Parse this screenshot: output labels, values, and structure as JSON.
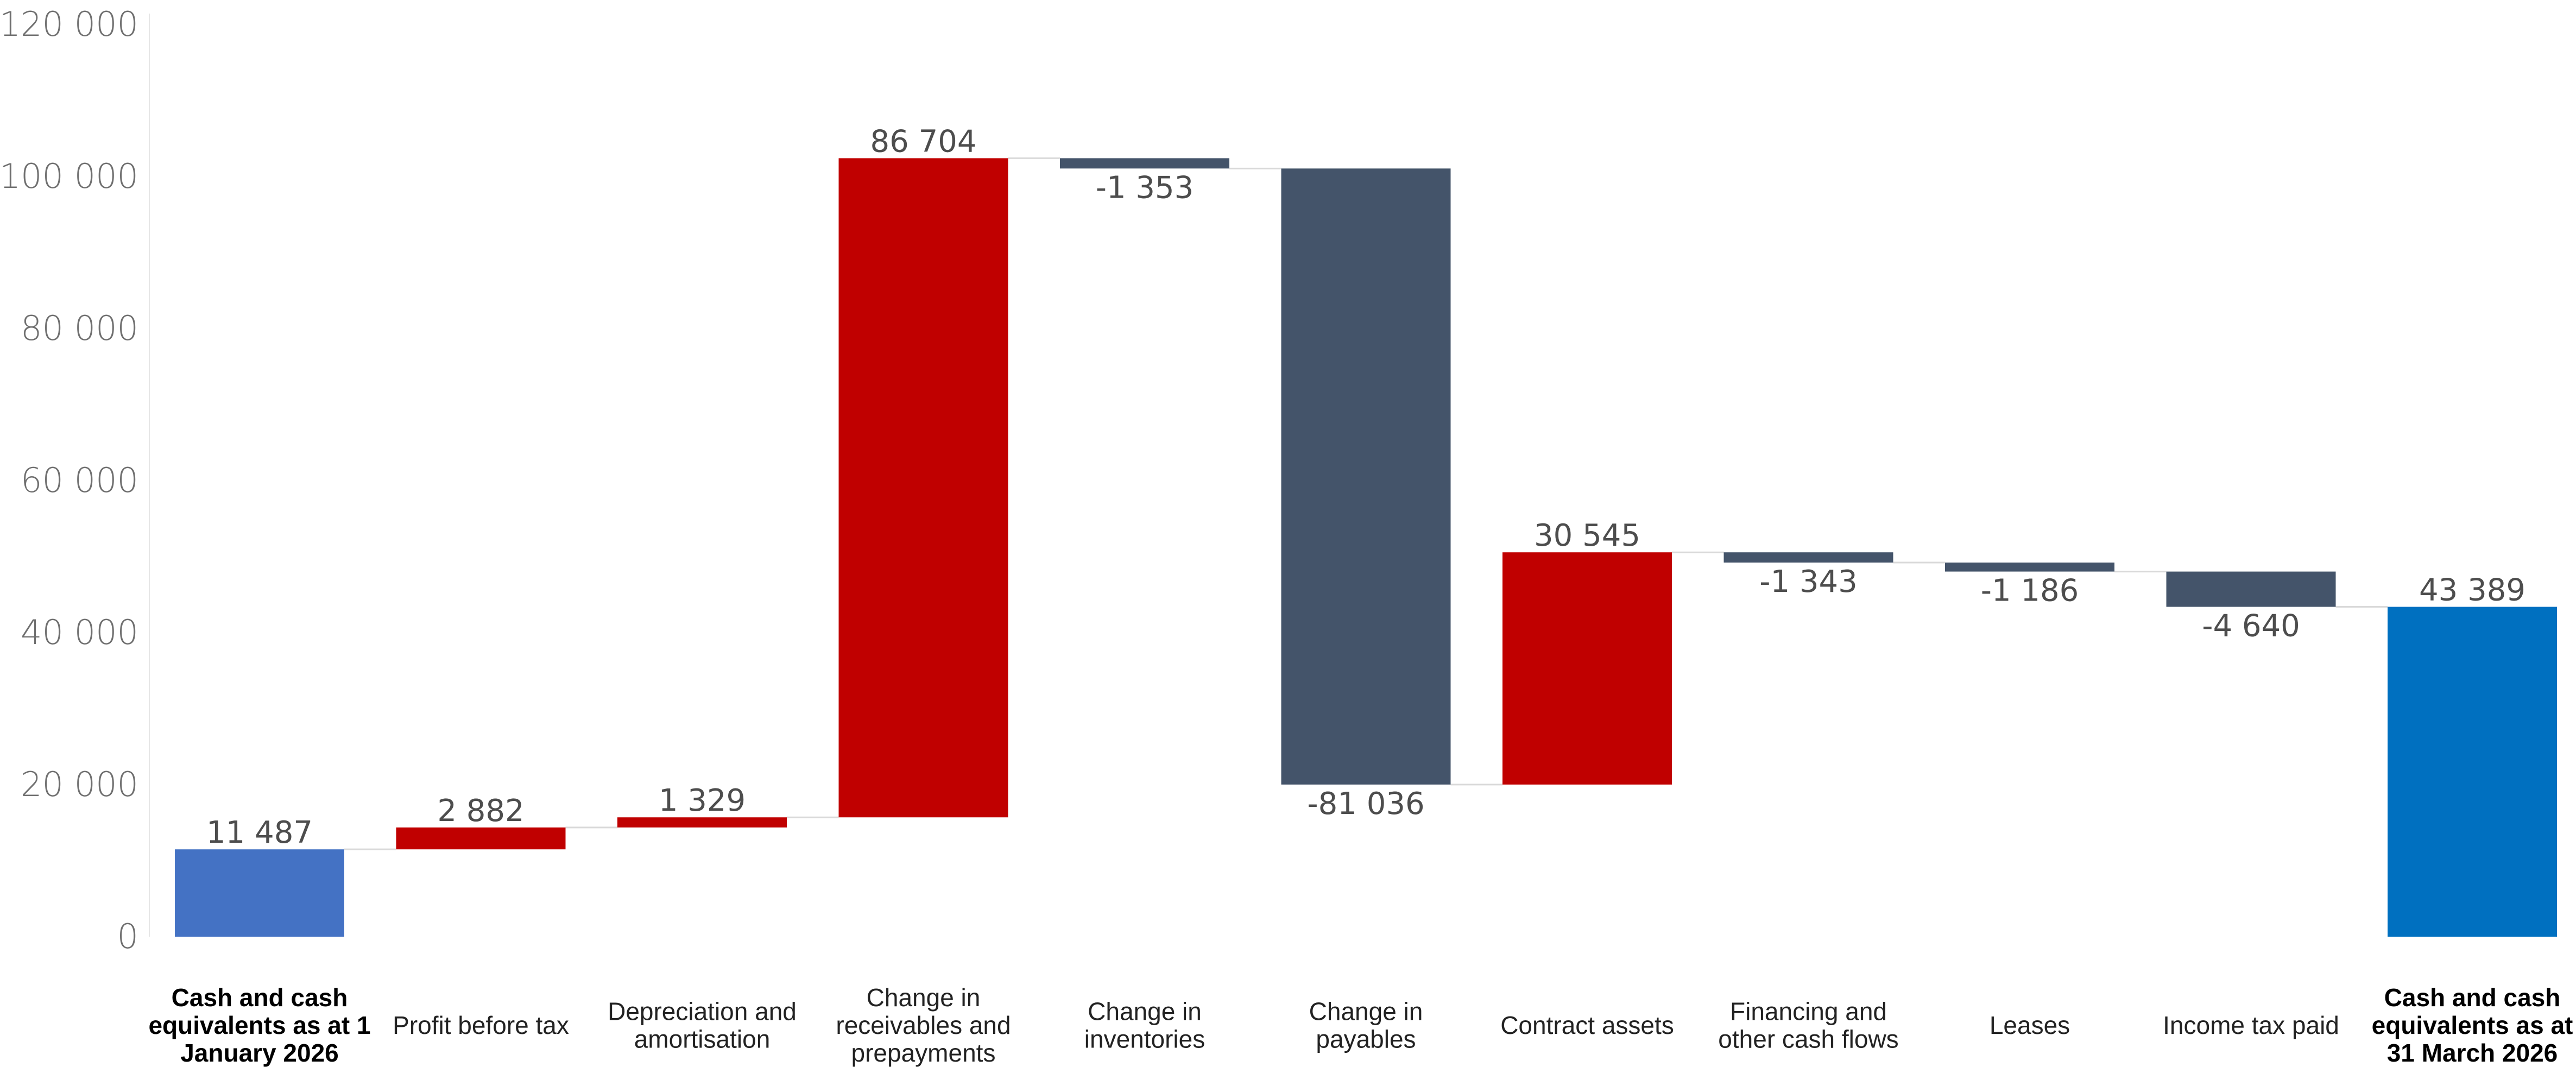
{
  "chart_data": {
    "type": "waterfall",
    "title": "",
    "xlabel": "",
    "ylabel": "",
    "ylim": [
      0,
      120000
    ],
    "y_ticks": [
      0,
      20000,
      40000,
      60000,
      80000,
      100000,
      120000
    ],
    "y_tick_labels": [
      "0",
      "20 000",
      "40 000",
      "60 000",
      "80 000",
      "100 000",
      "120 000"
    ],
    "grid": false,
    "legend": "none",
    "colors": {
      "start_total": "#4472c4",
      "end_total": "#0070c0",
      "increase": "#c00000",
      "decrease": "#44546a",
      "connector": "#d9d9d9"
    },
    "bars": [
      {
        "category": [
          "Cash and cash",
          "equivalents as at 1",
          "January 2026"
        ],
        "value": 11487,
        "label": "11 487",
        "kind": "total",
        "bold": true
      },
      {
        "category": [
          "Profit before tax"
        ],
        "value": 2882,
        "label": "2 882",
        "kind": "delta",
        "bold": false
      },
      {
        "category": [
          "Depreciation and",
          "amortisation"
        ],
        "value": 1329,
        "label": "1 329",
        "kind": "delta",
        "bold": false
      },
      {
        "category": [
          "Change in",
          "receivables and",
          "prepayments"
        ],
        "value": 86704,
        "label": "86 704",
        "kind": "delta",
        "bold": false
      },
      {
        "category": [
          "Change in",
          "inventories"
        ],
        "value": -1353,
        "label": "-1 353",
        "kind": "delta",
        "bold": false
      },
      {
        "category": [
          "Change in",
          "payables"
        ],
        "value": -81036,
        "label": "-81 036",
        "kind": "delta",
        "bold": false
      },
      {
        "category": [
          "Contract assets"
        ],
        "value": 30545,
        "label": "30 545",
        "kind": "delta",
        "bold": false
      },
      {
        "category": [
          "Financing and",
          "other cash flows"
        ],
        "value": -1343,
        "label": "-1 343",
        "kind": "delta",
        "bold": false
      },
      {
        "category": [
          "Leases"
        ],
        "value": -1186,
        "label": "-1 186",
        "kind": "delta",
        "bold": false
      },
      {
        "category": [
          "Income tax paid"
        ],
        "value": -4640,
        "label": "-4 640",
        "kind": "delta",
        "bold": false
      },
      {
        "category": [
          "Cash and cash",
          "equivalents as at",
          "31 March 2026"
        ],
        "value": 43389,
        "label": "43 389",
        "kind": "total",
        "bold": true
      }
    ]
  }
}
